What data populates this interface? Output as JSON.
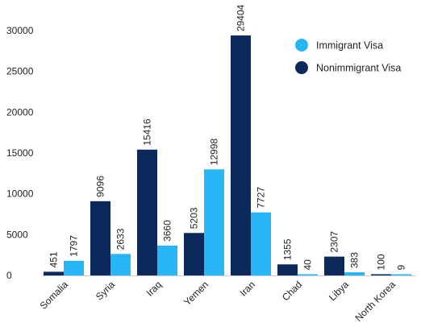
{
  "chart_data": {
    "type": "bar",
    "title": "",
    "xlabel": "",
    "ylabel": "",
    "categories": [
      "Somalia",
      "Syria",
      "Iraq",
      "Yemen",
      "Iran",
      "Chad",
      "Libya",
      "North Korea"
    ],
    "series": [
      {
        "name": "Nonimmigrant Visa",
        "color": "#0b2a5b",
        "values": [
          451,
          9096,
          15416,
          5203,
          29404,
          1355,
          2307,
          100
        ]
      },
      {
        "name": "Immigrant Visa",
        "color": "#29b6f6",
        "values": [
          1797,
          2633,
          3660,
          12998,
          7727,
          40,
          383,
          9
        ]
      }
    ],
    "ylim": [
      0,
      30000
    ],
    "yticks": [
      0,
      5000,
      10000,
      15000,
      20000,
      25000,
      30000
    ],
    "grid": false,
    "legend_position": "top-right",
    "data_labels": true
  }
}
